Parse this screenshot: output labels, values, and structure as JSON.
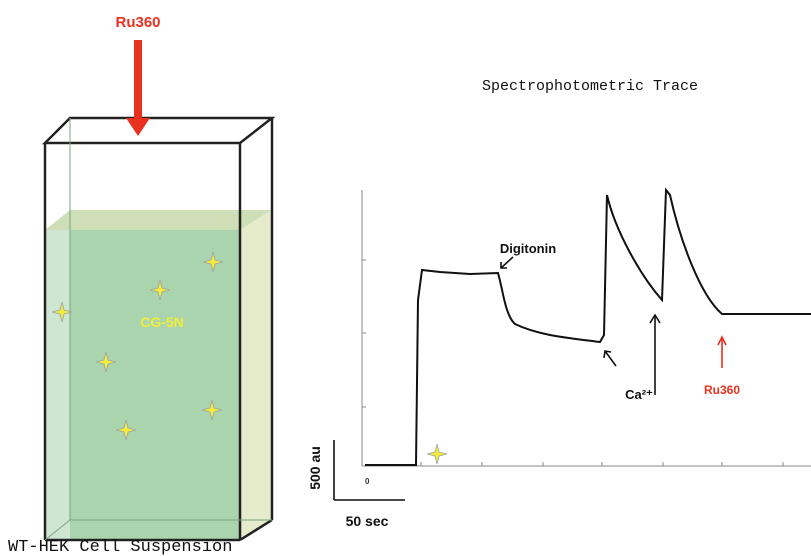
{
  "cuvette": {
    "additive_label": "Ru360",
    "dye_label": "CG-5N",
    "caption": "WT-HEK Cell Suspension"
  },
  "trace": {
    "title": "Spectrophotometric Trace",
    "digitonin_label": "Digitonin",
    "calcium_label": "Ca²⁺",
    "inhibitor_label": "Ru360",
    "y_scale_label": "500 au",
    "x_scale_label": "50 sec",
    "origin_label": "0"
  }
}
